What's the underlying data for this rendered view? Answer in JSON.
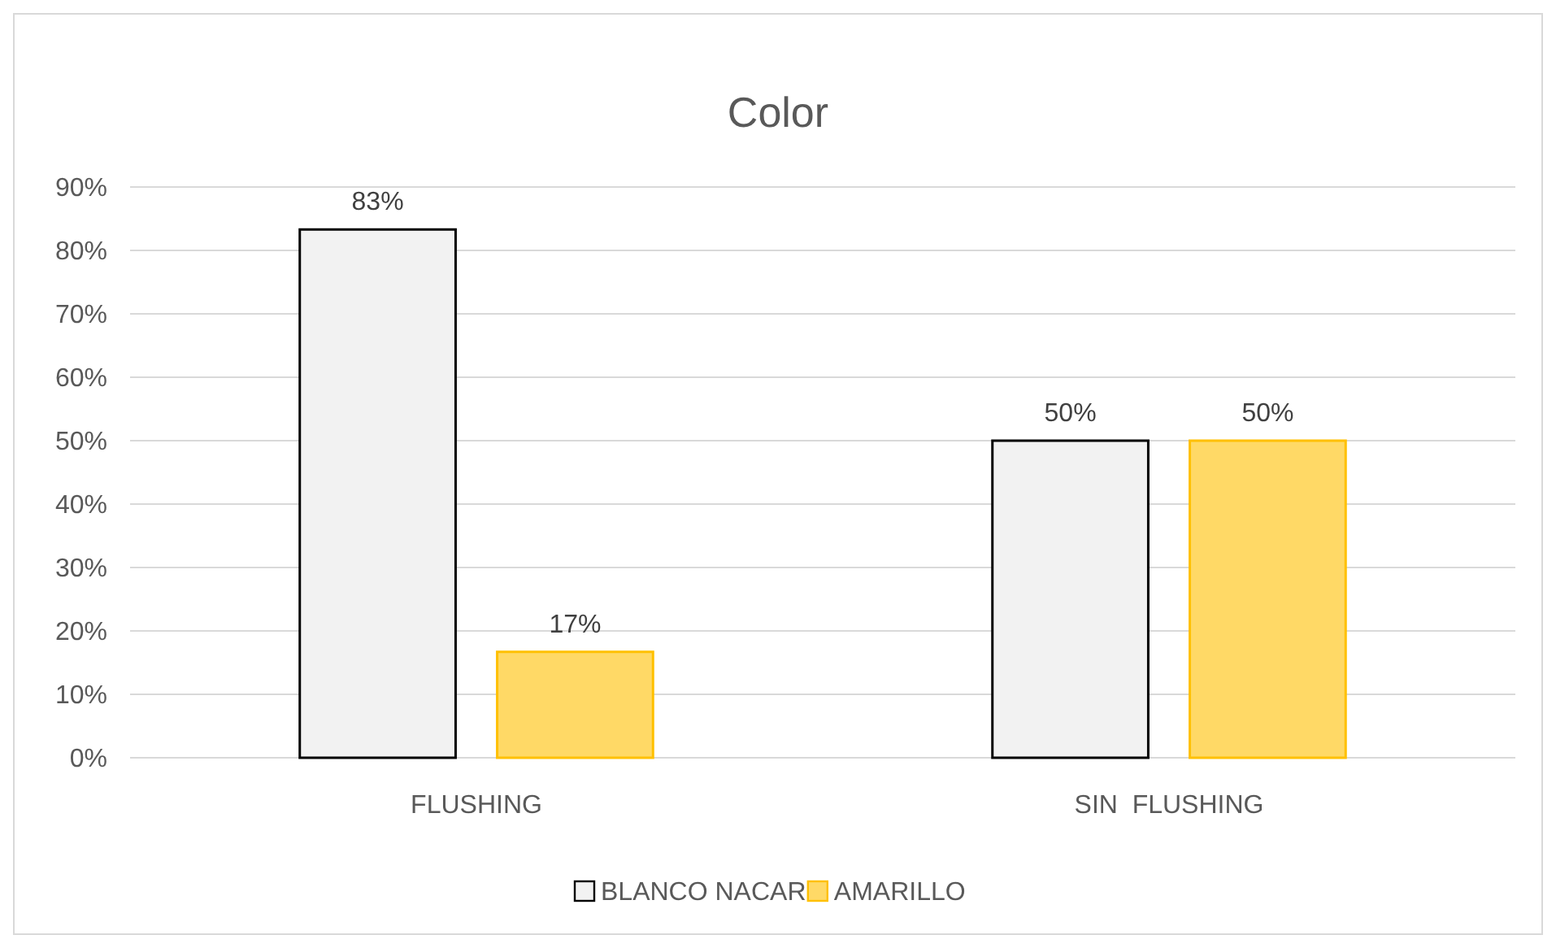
{
  "chart_data": {
    "type": "bar",
    "title": "Color",
    "categories": [
      "FLUSHING",
      "SIN  FLUSHING"
    ],
    "series": [
      {
        "name": "BLANCO NACAR",
        "color": "#f2f2f2",
        "values": [
          83.3,
          50
        ],
        "value_labels": [
          "83%",
          "50%"
        ]
      },
      {
        "name": "AMARILLO",
        "color": "#ffd966",
        "values": [
          16.7,
          50
        ],
        "value_labels": [
          "17%",
          "50%"
        ]
      }
    ],
    "ylim": [
      0,
      90
    ],
    "yticks": [
      {
        "value": 0,
        "label": "0%"
      },
      {
        "value": 10,
        "label": "10%"
      },
      {
        "value": 20,
        "label": "20%"
      },
      {
        "value": 30,
        "label": "30%"
      },
      {
        "value": 40,
        "label": "40%"
      },
      {
        "value": 50,
        "label": "50%"
      },
      {
        "value": 60,
        "label": "60%"
      },
      {
        "value": 70,
        "label": "70%"
      },
      {
        "value": 80,
        "label": "80%"
      },
      {
        "value": 90,
        "label": "90%"
      }
    ],
    "grid": "y",
    "legend": "bottom"
  }
}
